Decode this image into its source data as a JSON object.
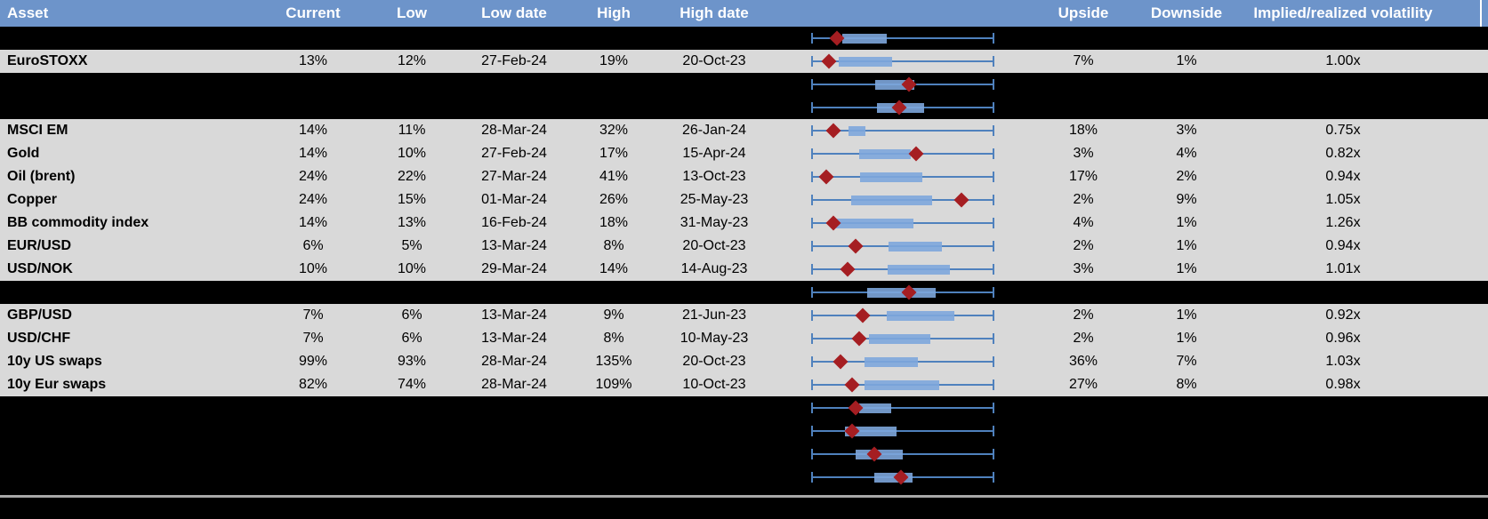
{
  "header": {
    "labels": [
      "Asset",
      "Current",
      "Low",
      "Low date",
      "High",
      "High date",
      "Upside",
      "Downside",
      "Implied/realized volatility"
    ]
  },
  "chart_data": {
    "type": "table+boxplot",
    "description": "Asset volatility table. Middle column shows a horizontal box-and-whisker chart per row with a dark-red diamond marking the current level. No numeric axis is shown for the boxplots, so box.lo, box.hi and box.marker are fractions (0-1) of the whisker span. Rows of type 'dark' are blacked-out/hidden rows where only the boxplot remains visible.",
    "columns": [
      "Asset",
      "Current",
      "Low",
      "Low date",
      "High",
      "High date",
      "Range boxplot",
      "Upside",
      "Downside",
      "Implied/realized volatility"
    ],
    "rows": [
      {
        "type": "dark",
        "asset": null,
        "current": null,
        "low": null,
        "low_date": null,
        "high": null,
        "high_date": null,
        "upside": null,
        "downside": null,
        "ratio": null,
        "box": {
          "lo": 0.17,
          "hi": 0.413,
          "marker": 0.141
        }
      },
      {
        "type": "data",
        "asset": "EuroSTOXX",
        "current": "13%",
        "low": "12%",
        "low_date": "27-Feb-24",
        "high": "19%",
        "high_date": "20-Oct-23",
        "upside": "7%",
        "downside": "1%",
        "ratio": "1.00x",
        "box": {
          "lo": 0.15,
          "hi": 0.442,
          "marker": 0.097
        }
      },
      {
        "type": "dark",
        "asset": null,
        "current": null,
        "low": null,
        "low_date": null,
        "high": null,
        "high_date": null,
        "upside": null,
        "downside": null,
        "ratio": null,
        "box": {
          "lo": 0.35,
          "hi": 0.563,
          "marker": 0.534
        }
      },
      {
        "type": "dark",
        "asset": null,
        "current": null,
        "low": null,
        "low_date": null,
        "high": null,
        "high_date": null,
        "upside": null,
        "downside": null,
        "ratio": null,
        "box": {
          "lo": 0.359,
          "hi": 0.617,
          "marker": 0.481
        }
      },
      {
        "type": "data",
        "asset": "MSCI EM",
        "current": "14%",
        "low": "11%",
        "low_date": "28-Mar-24",
        "high": "32%",
        "high_date": "26-Jan-24",
        "upside": "18%",
        "downside": "3%",
        "ratio": "0.75x",
        "box": {
          "lo": 0.204,
          "hi": 0.296,
          "marker": 0.121
        }
      },
      {
        "type": "data",
        "asset": "Gold",
        "current": "14%",
        "low": "10%",
        "low_date": "27-Feb-24",
        "high": "17%",
        "high_date": "15-Apr-24",
        "upside": "3%",
        "downside": "4%",
        "ratio": "0.82x",
        "box": {
          "lo": 0.262,
          "hi": 0.544,
          "marker": 0.573
        }
      },
      {
        "type": "data",
        "asset": "Oil (brent)",
        "current": "24%",
        "low": "22%",
        "low_date": "27-Mar-24",
        "high": "41%",
        "high_date": "13-Oct-23",
        "upside": "17%",
        "downside": "2%",
        "ratio": "0.94x",
        "box": {
          "lo": 0.267,
          "hi": 0.607,
          "marker": 0.083
        }
      },
      {
        "type": "data",
        "asset": "Copper",
        "current": "24%",
        "low": "15%",
        "low_date": "01-Mar-24",
        "high": "26%",
        "high_date": "25-May-23",
        "upside": "2%",
        "downside": "9%",
        "ratio": "1.05x",
        "box": {
          "lo": 0.218,
          "hi": 0.66,
          "marker": 0.82
        }
      },
      {
        "type": "data",
        "asset": "BB commodity index",
        "current": "14%",
        "low": "13%",
        "low_date": "16-Feb-24",
        "high": "18%",
        "high_date": "31-May-23",
        "upside": "4%",
        "downside": "1%",
        "ratio": "1.26x",
        "box": {
          "lo": 0.136,
          "hi": 0.558,
          "marker": 0.121
        }
      },
      {
        "type": "data",
        "asset": "EUR/USD",
        "current": "6%",
        "low": "5%",
        "low_date": "13-Mar-24",
        "high": "8%",
        "high_date": "20-Oct-23",
        "upside": "2%",
        "downside": "1%",
        "ratio": "0.94x",
        "box": {
          "lo": 0.422,
          "hi": 0.714,
          "marker": 0.243
        }
      },
      {
        "type": "data",
        "asset": "USD/NOK",
        "current": "10%",
        "low": "10%",
        "low_date": "29-Mar-24",
        "high": "14%",
        "high_date": "14-Aug-23",
        "upside": "3%",
        "downside": "1%",
        "ratio": "1.01x",
        "box": {
          "lo": 0.417,
          "hi": 0.757,
          "marker": 0.199
        }
      },
      {
        "type": "dark",
        "asset": null,
        "current": null,
        "low": null,
        "low_date": null,
        "high": null,
        "high_date": null,
        "upside": null,
        "downside": null,
        "ratio": null,
        "box": {
          "lo": 0.306,
          "hi": 0.68,
          "marker": 0.534
        }
      },
      {
        "type": "data",
        "asset": "GBP/USD",
        "current": "7%",
        "low": "6%",
        "low_date": "13-Mar-24",
        "high": "9%",
        "high_date": "21-Jun-23",
        "upside": "2%",
        "downside": "1%",
        "ratio": "0.92x",
        "box": {
          "lo": 0.413,
          "hi": 0.781,
          "marker": 0.282
        }
      },
      {
        "type": "data",
        "asset": "USD/CHF",
        "current": "7%",
        "low": "6%",
        "low_date": "13-Mar-24",
        "high": "8%",
        "high_date": "10-May-23",
        "upside": "2%",
        "downside": "1%",
        "ratio": "0.96x",
        "box": {
          "lo": 0.316,
          "hi": 0.65,
          "marker": 0.262
        }
      },
      {
        "type": "data",
        "asset": "10y US swaps",
        "current": "99%",
        "low": "93%",
        "low_date": "28-Mar-24",
        "high": "135%",
        "high_date": "20-Oct-23",
        "upside": "36%",
        "downside": "7%",
        "ratio": "1.03x",
        "box": {
          "lo": 0.291,
          "hi": 0.583,
          "marker": 0.16
        }
      },
      {
        "type": "data",
        "asset": "10y Eur swaps",
        "current": "82%",
        "low": "74%",
        "low_date": "28-Mar-24",
        "high": "109%",
        "high_date": "10-Oct-23",
        "upside": "27%",
        "downside": "8%",
        "ratio": "0.98x",
        "box": {
          "lo": 0.291,
          "hi": 0.699,
          "marker": 0.223
        }
      },
      {
        "type": "dark",
        "asset": null,
        "current": null,
        "low": null,
        "low_date": null,
        "high": null,
        "high_date": null,
        "upside": null,
        "downside": null,
        "ratio": null,
        "box": {
          "lo": 0.262,
          "hi": 0.437,
          "marker": 0.243
        }
      },
      {
        "type": "dark",
        "asset": null,
        "current": null,
        "low": null,
        "low_date": null,
        "high": null,
        "high_date": null,
        "upside": null,
        "downside": null,
        "ratio": null,
        "box": {
          "lo": 0.184,
          "hi": 0.466,
          "marker": 0.223
        }
      },
      {
        "type": "dark",
        "asset": null,
        "current": null,
        "low": null,
        "low_date": null,
        "high": null,
        "high_date": null,
        "upside": null,
        "downside": null,
        "ratio": null,
        "box": {
          "lo": 0.243,
          "hi": 0.5,
          "marker": 0.345
        }
      },
      {
        "type": "dark",
        "asset": null,
        "current": null,
        "low": null,
        "low_date": null,
        "high": null,
        "high_date": null,
        "upside": null,
        "downside": null,
        "ratio": null,
        "box": {
          "lo": 0.345,
          "hi": 0.553,
          "marker": 0.49
        }
      }
    ]
  },
  "colors": {
    "header_bg": "#6d94ca",
    "header_text": "#ffffff",
    "row_gray": "#d9d9d9",
    "row_dark": "#000000",
    "box_fill": "#7da6dc",
    "whisker": "#4f81bd",
    "marker_diamond": "#a51e22",
    "bottom_divider": "#a8a8a8"
  }
}
